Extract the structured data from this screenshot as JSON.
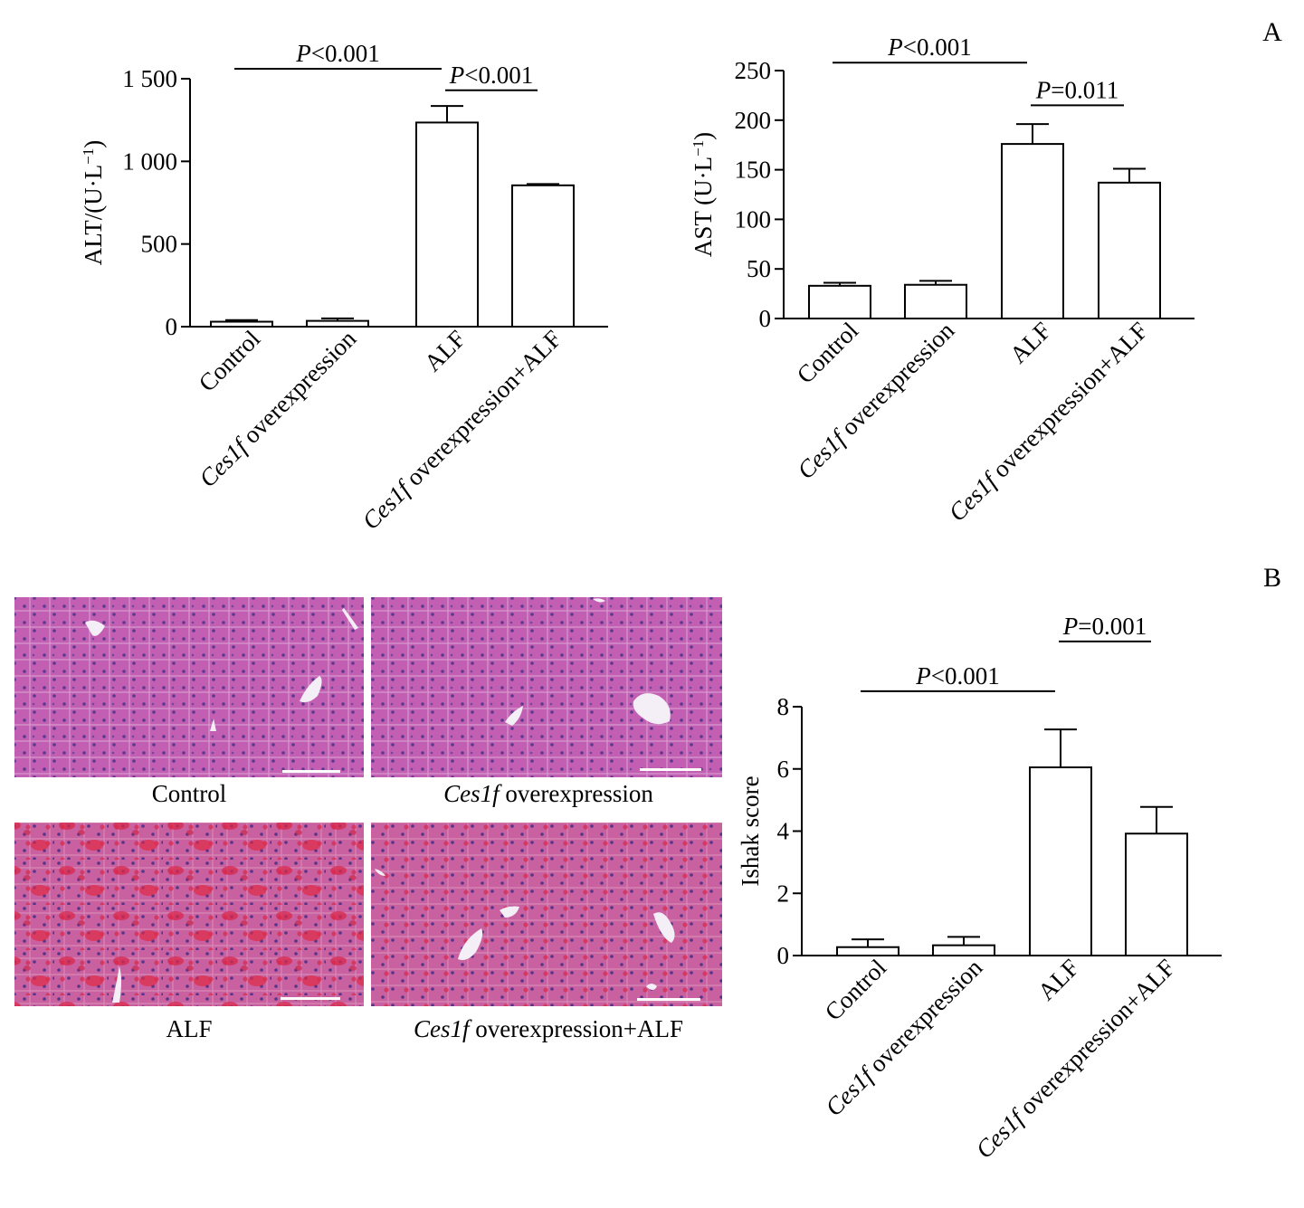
{
  "panel_labels": {
    "a": "A",
    "b": "B"
  },
  "image_captions": [
    {
      "italic": "",
      "rest": "Control"
    },
    {
      "italic": "Ces1f",
      "rest": " overexpression"
    },
    {
      "italic": "",
      "rest": "ALF"
    },
    {
      "italic": "Ces1f",
      "rest": " overexpression+ALF"
    }
  ],
  "image_tints": {
    "healthy": "#c05fb0",
    "injured": "#c85f9e",
    "hemorrhage": "#d8284a",
    "vein": "#f4eef6",
    "scalebar": "#ffffff"
  },
  "chart_data": [
    {
      "type": "bar",
      "ylabel": "ALT/(U·L",
      "ylabel_sup": "−1",
      "ylabel_close": ")",
      "ylim": [
        0,
        1500
      ],
      "yticks": [
        0,
        500,
        1000,
        1500
      ],
      "ytick_labels": [
        "0",
        "500",
        "1 000",
        "1 500"
      ],
      "grid": false,
      "categories": [
        {
          "italic": "",
          "rest": "Control"
        },
        {
          "italic": "Ces1f",
          "rest": " overexpression"
        },
        {
          "italic": "",
          "rest": "ALF"
        },
        {
          "italic": "Ces1f",
          "rest": " overexpression+ALF"
        }
      ],
      "values": [
        30,
        35,
        1235,
        855
      ],
      "errors": [
        10,
        15,
        100,
        8
      ],
      "bar_fill": "#ffffff",
      "significance": [
        {
          "from": 0,
          "to": 2,
          "level": 1560,
          "label_italic": "P",
          "label_rest": "<0.001"
        },
        {
          "from": 2,
          "to": 3,
          "level": 1430,
          "label_italic": "P",
          "label_rest": "<0.001"
        }
      ]
    },
    {
      "type": "bar",
      "ylabel": "AST (U·L",
      "ylabel_sup": "−1",
      "ylabel_close": ")",
      "ylim": [
        0,
        250
      ],
      "yticks": [
        0,
        50,
        100,
        150,
        200,
        250
      ],
      "ytick_labels": [
        "0",
        "50",
        "100",
        "150",
        "200",
        "250"
      ],
      "grid": false,
      "categories": [
        {
          "italic": "",
          "rest": "Control"
        },
        {
          "italic": "Ces1f",
          "rest": " overexpression"
        },
        {
          "italic": "",
          "rest": "ALF"
        },
        {
          "italic": "Ces1f",
          "rest": " overexpression+ALF"
        }
      ],
      "values": [
        33,
        34,
        176,
        137
      ],
      "errors": [
        3,
        4,
        20,
        14
      ],
      "bar_fill": "#ffffff",
      "significance": [
        {
          "from": 0,
          "to": 2,
          "level": 258,
          "label_italic": "P",
          "label_rest": "<0.001"
        },
        {
          "from": 2,
          "to": 3,
          "level": 215,
          "label_italic": "P",
          "label_rest": "=0.011"
        }
      ]
    },
    {
      "type": "bar",
      "ylabel": "Ishak score",
      "ylabel_sup": "",
      "ylabel_close": "",
      "ylim": [
        0,
        8
      ],
      "yticks": [
        0,
        2,
        4,
        6,
        8
      ],
      "ytick_labels": [
        "0",
        "2",
        "4",
        "6",
        "8"
      ],
      "grid": false,
      "categories": [
        {
          "italic": "",
          "rest": "Control"
        },
        {
          "italic": "Ces1f",
          "rest": " overexpression"
        },
        {
          "italic": "",
          "rest": "ALF"
        },
        {
          "italic": "Ces1f",
          "rest": " overexpression+ALF"
        }
      ],
      "values": [
        0.27,
        0.33,
        6.05,
        3.92
      ],
      "errors": [
        0.25,
        0.27,
        1.22,
        0.86
      ],
      "bar_fill": "#ffffff",
      "significance": [
        {
          "from": 0,
          "to": 2,
          "level": 8.5,
          "label_italic": "P",
          "label_rest": "<0.001"
        },
        {
          "from": 2,
          "to": 3,
          "level": 10.1,
          "label_italic": "P",
          "label_rest": "=0.001"
        }
      ]
    }
  ]
}
